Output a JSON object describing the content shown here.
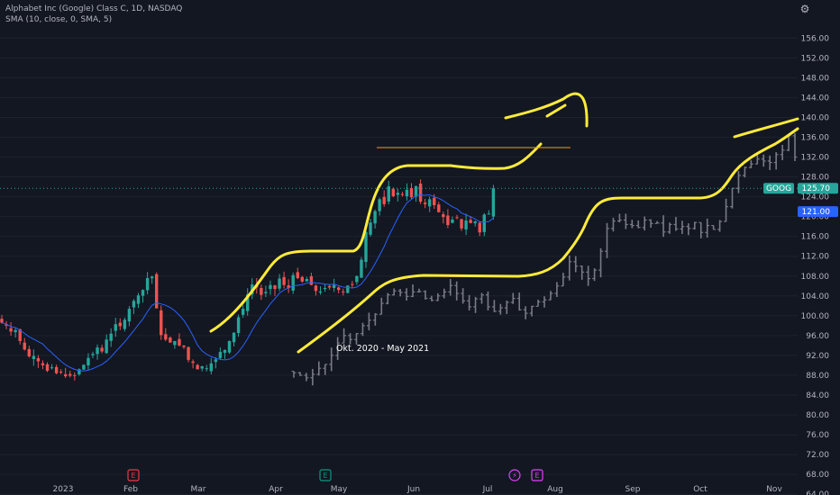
{
  "header": {
    "title": "Alphabet Inc (Google) Class C, 1D, NASDAQ",
    "indicator": "SMA (10, close, 0, SMA, 5)"
  },
  "colors": {
    "background": "#131722",
    "up": "#26a69a",
    "down": "#ef5350",
    "sma": "#2962ff",
    "overlay": "#787b86",
    "drawing": "#ffeb3b",
    "hline": "#ff9800",
    "symbol_tag": "#26a69a",
    "price_tag": "#2962ff"
  },
  "chart_data": {
    "type": "candlestick",
    "symbol": "GOOG",
    "y_ticks": [
      64,
      68,
      72,
      76,
      80,
      84,
      88,
      92,
      96,
      100,
      104,
      108,
      112,
      116,
      120,
      124,
      128,
      132,
      136,
      140,
      144,
      148,
      152,
      156
    ],
    "ylim": [
      62,
      158
    ],
    "x_ticks": [
      "2023",
      "Feb",
      "Mar",
      "Apr",
      "May",
      "Jun",
      "Jul",
      "Aug",
      "Sep",
      "Oct",
      "Nov"
    ],
    "event_markers": [
      {
        "label": "E",
        "month": "Feb",
        "color": "#f23645"
      },
      {
        "label": "E",
        "month": "Apr",
        "color": "#089981"
      },
      {
        "label": "⚡",
        "month": "Jul",
        "color": "#e040fb"
      },
      {
        "label": "E",
        "month": "Jul",
        "color": "#e040fb"
      }
    ],
    "last_price_label": "125.70",
    "symbol_label": "GOOG",
    "price_marker_label": "121.00",
    "horizontal_line_level": 129.0,
    "annotation": "Okt. 2020 - May 2021",
    "ohlc_closes_main": [
      98.6,
      98.0,
      96.8,
      97.1,
      94.9,
      93.2,
      91.8,
      91.9,
      90.8,
      90.0,
      88.9,
      89.6,
      88.4,
      88.7,
      87.8,
      87.9,
      88.0,
      89.2,
      90.1,
      91.5,
      92.3,
      93.6,
      92.8,
      95.2,
      96.4,
      98.3,
      97.9,
      99.2,
      101.4,
      103.0,
      104.1,
      105.2,
      107.6,
      107.9,
      101.5,
      96.1,
      95.2,
      94.6,
      94.9,
      94.0,
      93.7,
      91.1,
      90.5,
      89.2,
      89.8,
      89.4,
      90.4,
      91.2,
      92.7,
      93.1,
      94.9,
      96.6,
      99.7,
      101.4,
      104.3,
      106.3,
      105.7,
      104.2,
      104.8,
      106.2,
      105.4,
      107.5,
      106.2,
      105.6,
      108.2,
      107.6,
      106.9,
      107.4,
      106.2,
      105.0,
      104.9,
      105.6,
      105.7,
      106.2,
      105.2,
      104.8,
      106.1,
      106.3,
      108.0,
      111.3,
      116.9,
      118.8,
      121.1,
      123.5,
      122.5,
      126.1,
      124.1,
      124.8,
      124.5,
      125.4,
      123.9,
      126.1,
      123.0,
      122.5,
      123.5,
      122.3,
      120.9,
      119.9,
      118.3,
      119.4,
      119.8,
      117.6,
      119.2,
      118.7,
      119.0,
      116.8,
      120.4,
      120.6,
      125.7
    ],
    "ohlc_closes_overlay": [
      88.5,
      88.0,
      87.5,
      88.2,
      89.4,
      90.2,
      92.0,
      94.5,
      96.0,
      95.2,
      96.4,
      98.0,
      99.1,
      100.3,
      102.5,
      104.2,
      105.0,
      104.7,
      103.9,
      104.8,
      104.9,
      103.5,
      103.1,
      104.0,
      104.8,
      106.1,
      104.5,
      103.0,
      101.8,
      103.4,
      104.2,
      101.8,
      100.9,
      101.6,
      102.7,
      103.5,
      101.2,
      100.5,
      101.9,
      102.8,
      103.2,
      104.5,
      106.0,
      107.8,
      110.9,
      110.0,
      108.8,
      107.5,
      109.2,
      113.0,
      117.6,
      119.1,
      119.3,
      118.4,
      118.2,
      117.8,
      119.3,
      118.6,
      118.7,
      116.9,
      118.4,
      117.5,
      118.0,
      117.6,
      118.8,
      116.8,
      118.2,
      117.4,
      119.0,
      122.0,
      125.7,
      128.3,
      129.9,
      130.6,
      131.6,
      131.2,
      130.9,
      132.5,
      133.4,
      136.3,
      132.0
    ]
  }
}
